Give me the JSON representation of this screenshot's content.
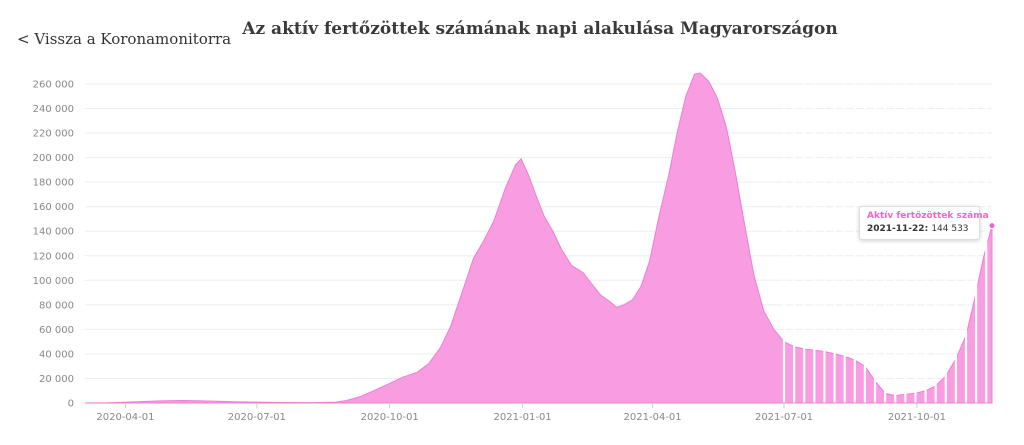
{
  "header": {
    "back_link": "< Vissza a Koronamonitorra",
    "title": "Az aktív fertőzöttek számának napi alakulása Magyarországon"
  },
  "colors": {
    "area_fill": "#f99de3",
    "area_stroke": "#ee7dd6",
    "grid": "#eeeeee",
    "accent": "#ee66cc"
  },
  "tooltip": {
    "series": "Aktív fertőzöttek száma",
    "date": "2021-11-22",
    "value": "144 533"
  },
  "chart_data": {
    "type": "area",
    "title": "Az aktív fertőzöttek számának napi alakulása Magyarországon",
    "ylim": [
      0,
      260000
    ],
    "yticks": [
      "0",
      "20 000",
      "40 000",
      "60 000",
      "80 000",
      "100 000",
      "120 000",
      "140 000",
      "160 000",
      "180 000",
      "200 000",
      "220 000",
      "240 000",
      "260 000"
    ],
    "xticks": [
      "2020-04-01",
      "2020-07-01",
      "2020-10-01",
      "2021-01-01",
      "2021-04-01",
      "2021-07-01",
      "2021-10-01"
    ],
    "xlim": [
      "2020-03-04",
      "2021-11-22"
    ],
    "grid": true,
    "legend": "none",
    "series": [
      {
        "name": "Aktív fertőzöttek száma",
        "points": [
          [
            "2020-03-04",
            0
          ],
          [
            "2020-03-20",
            200
          ],
          [
            "2020-04-10",
            1100
          ],
          [
            "2020-04-25",
            1700
          ],
          [
            "2020-05-10",
            2000
          ],
          [
            "2020-05-25",
            1700
          ],
          [
            "2020-06-15",
            1100
          ],
          [
            "2020-07-01",
            700
          ],
          [
            "2020-07-20",
            400
          ],
          [
            "2020-08-10",
            350
          ],
          [
            "2020-08-25",
            700
          ],
          [
            "2020-09-01",
            2000
          ],
          [
            "2020-09-10",
            5000
          ],
          [
            "2020-09-20",
            10000
          ],
          [
            "2020-10-01",
            16000
          ],
          [
            "2020-10-10",
            21000
          ],
          [
            "2020-10-20",
            25000
          ],
          [
            "2020-10-28",
            32000
          ],
          [
            "2020-11-05",
            45000
          ],
          [
            "2020-11-12",
            62000
          ],
          [
            "2020-11-20",
            90000
          ],
          [
            "2020-11-28",
            118000
          ],
          [
            "2020-12-05",
            132000
          ],
          [
            "2020-12-12",
            148000
          ],
          [
            "2020-12-20",
            175000
          ],
          [
            "2020-12-27",
            194000
          ],
          [
            "2020-12-31",
            199000
          ],
          [
            "2021-01-05",
            186000
          ],
          [
            "2021-01-10",
            170000
          ],
          [
            "2021-01-16",
            152000
          ],
          [
            "2021-01-22",
            140000
          ],
          [
            "2021-01-28",
            125000
          ],
          [
            "2021-02-04",
            112000
          ],
          [
            "2021-02-12",
            106000
          ],
          [
            "2021-02-18",
            97000
          ],
          [
            "2021-02-24",
            88000
          ],
          [
            "2021-03-02",
            83000
          ],
          [
            "2021-03-07",
            78000
          ],
          [
            "2021-03-12",
            80000
          ],
          [
            "2021-03-18",
            84000
          ],
          [
            "2021-03-24",
            95000
          ],
          [
            "2021-03-30",
            116000
          ],
          [
            "2021-04-05",
            150000
          ],
          [
            "2021-04-12",
            185000
          ],
          [
            "2021-04-18",
            220000
          ],
          [
            "2021-04-24",
            250000
          ],
          [
            "2021-04-30",
            268000
          ],
          [
            "2021-05-04",
            269000
          ],
          [
            "2021-05-10",
            262000
          ],
          [
            "2021-05-16",
            248000
          ],
          [
            "2021-05-22",
            225000
          ],
          [
            "2021-05-28",
            190000
          ],
          [
            "2021-06-03",
            150000
          ],
          [
            "2021-06-10",
            105000
          ],
          [
            "2021-06-17",
            75000
          ],
          [
            "2021-06-24",
            60000
          ],
          [
            "2021-07-01",
            50000
          ],
          [
            "2021-07-08",
            46000
          ],
          [
            "2021-07-15",
            44000
          ],
          [
            "2021-07-22",
            43000
          ],
          [
            "2021-07-29",
            42000
          ],
          [
            "2021-08-05",
            40000
          ],
          [
            "2021-08-12",
            38000
          ],
          [
            "2021-08-19",
            35000
          ],
          [
            "2021-08-26",
            30000
          ],
          [
            "2021-09-02",
            18000
          ],
          [
            "2021-09-09",
            8000
          ],
          [
            "2021-09-16",
            6000
          ],
          [
            "2021-09-23",
            7000
          ],
          [
            "2021-09-30",
            8000
          ],
          [
            "2021-10-07",
            10000
          ],
          [
            "2021-10-14",
            14000
          ],
          [
            "2021-10-21",
            22000
          ],
          [
            "2021-10-28",
            36000
          ],
          [
            "2021-11-04",
            55000
          ],
          [
            "2021-11-10",
            85000
          ],
          [
            "2021-11-16",
            118000
          ],
          [
            "2021-11-22",
            144533
          ]
        ]
      }
    ]
  }
}
